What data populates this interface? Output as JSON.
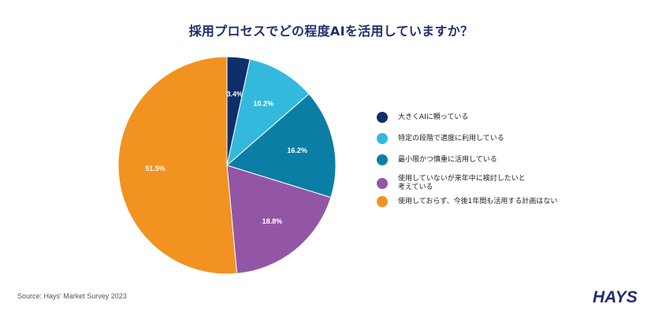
{
  "title": "採用プロセスでどの程度AIを活用していますか？",
  "source": "Source: Hays' Market Survey 2023",
  "logo_text": "HAYS",
  "chart_data": {
    "type": "pie",
    "title": "採用プロセスでどの程度AIを活用していますか？",
    "start_angle_deg": 0,
    "direction": "clockwise",
    "legend_position": "right",
    "slices": [
      {
        "label": "大きくAIに頼っている",
        "value": 3.4,
        "display": "3.4%",
        "color": "#0f2f6b"
      },
      {
        "label": "特定の段階で適度に利用している",
        "value": 10.2,
        "display": "10.2%",
        "color": "#33b9dc"
      },
      {
        "label": "最小限かつ慎重に活用している",
        "value": 16.2,
        "display": "16.2%",
        "color": "#0b7ea6"
      },
      {
        "label": "使用していないが来年中に検討したいと\n考えている",
        "value": 18.8,
        "display": "18.8%",
        "color": "#9356a7"
      },
      {
        "label": "使用しておらず、今後1年間も活用する計画はない",
        "value": 51.5,
        "display": "51.5%",
        "color": "#f29221"
      }
    ]
  }
}
